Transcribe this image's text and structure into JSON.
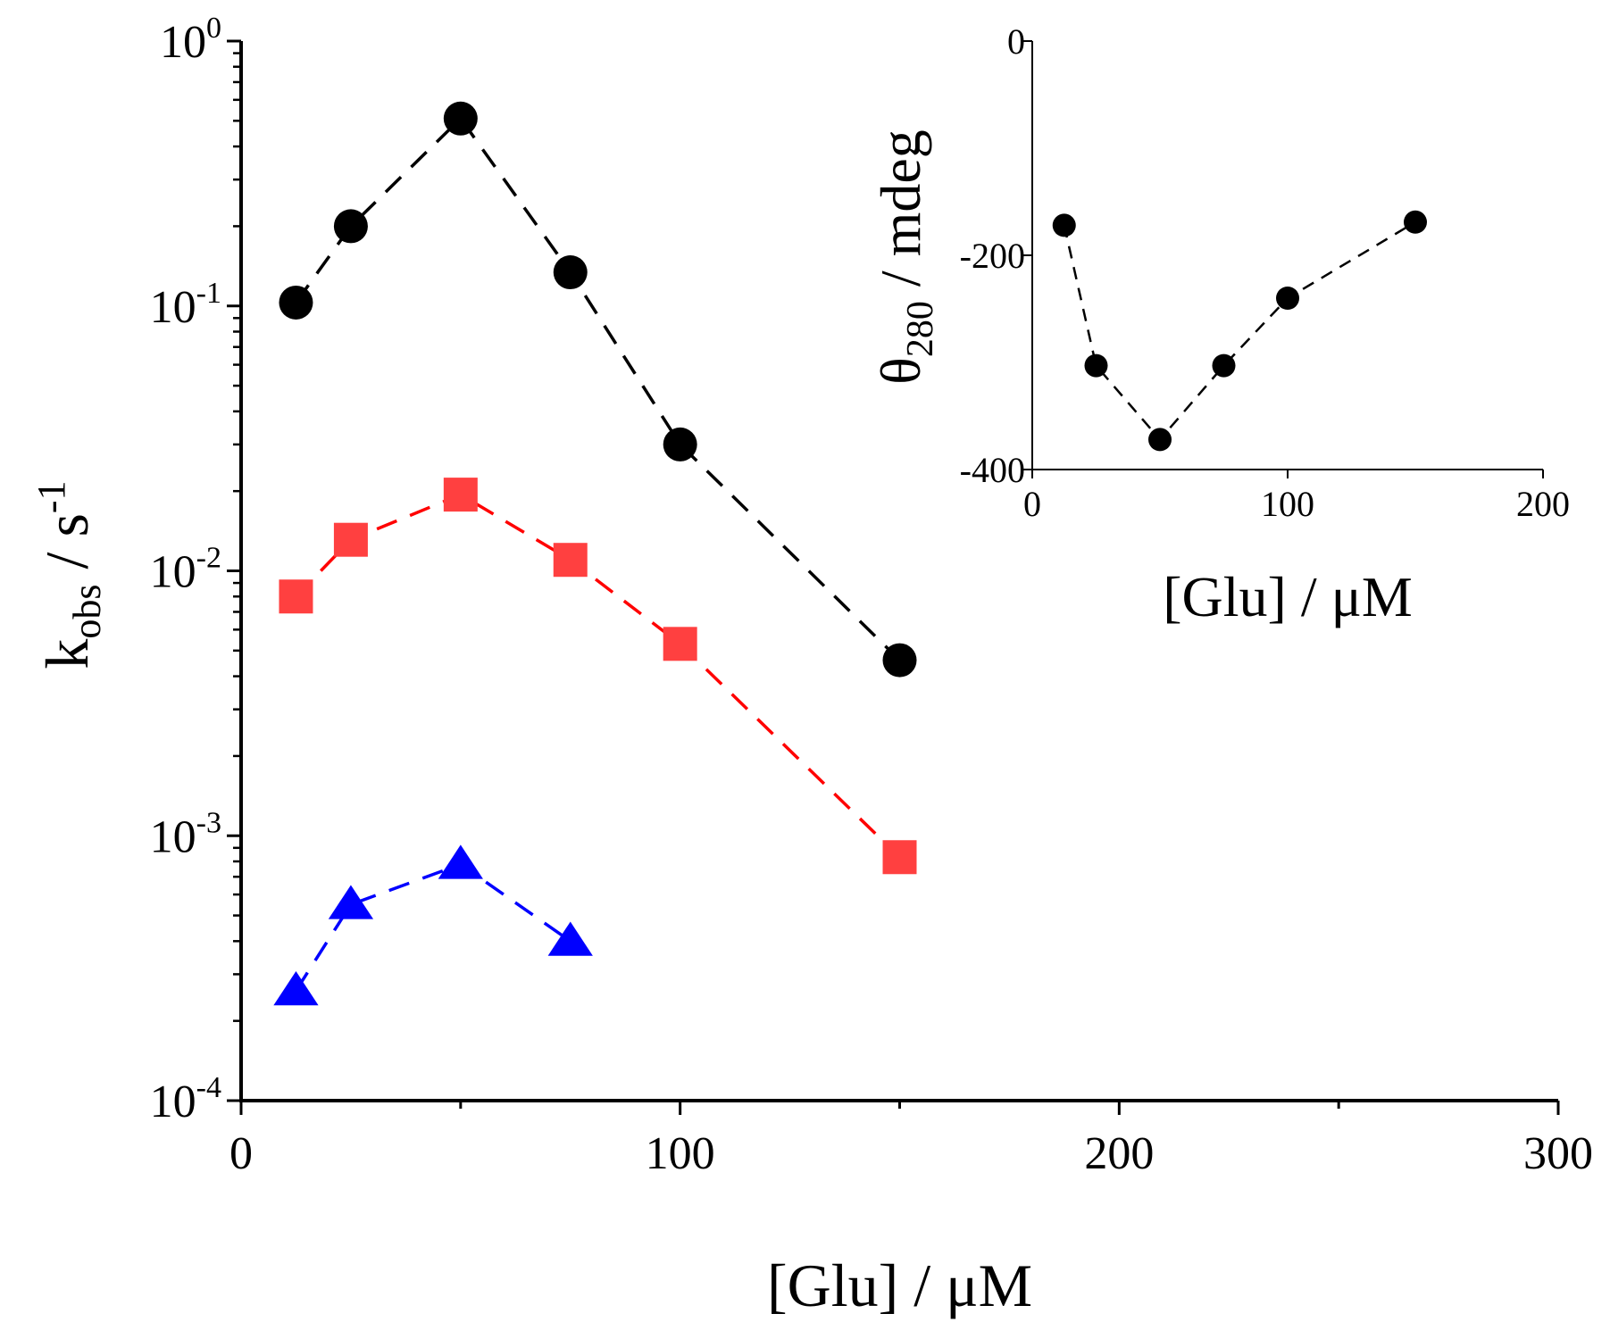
{
  "chart_data": [
    {
      "type": "line",
      "name": "main",
      "xlabel": "[Glu] / μM",
      "ylabel_main": "k",
      "ylabel_sub": "obs",
      "ylabel_mid": " / s",
      "ylabel_sup": "-1",
      "xlim": [
        0,
        300
      ],
      "ylim": [
        0.0001,
        1
      ],
      "yscale": "log",
      "xticks": [
        "0",
        "100",
        "200",
        "300"
      ],
      "yticks": [
        {
          "base": "10",
          "exp": "0"
        },
        {
          "base": "10",
          "exp": "-1"
        },
        {
          "base": "10",
          "exp": "-2"
        },
        {
          "base": "10",
          "exp": "-3"
        },
        {
          "base": "10",
          "exp": "-4"
        }
      ],
      "series": [
        {
          "name": "black-circles",
          "marker": "circle",
          "color": "#000000",
          "x": [
            12.5,
            25,
            50,
            75,
            100,
            150
          ],
          "y": [
            0.103,
            0.2,
            0.51,
            0.134,
            0.03,
            0.0046
          ]
        },
        {
          "name": "red-squares",
          "marker": "square",
          "color": "#ff4040",
          "line_color": "#ff0000",
          "x": [
            12.5,
            25,
            50,
            75,
            100,
            150
          ],
          "y": [
            0.008,
            0.0131,
            0.0194,
            0.011,
            0.0053,
            0.00083
          ]
        },
        {
          "name": "blue-triangles",
          "marker": "triangle",
          "color": "#0000ff",
          "x": [
            12.5,
            25,
            50,
            75
          ],
          "y": [
            0.00026,
            0.00055,
            0.00078,
            0.0004
          ]
        }
      ]
    },
    {
      "type": "line",
      "name": "inset",
      "xlabel": "[Glu] / μM",
      "ylabel_main": "θ",
      "ylabel_sub": "280",
      "ylabel_mid": " / mdeg",
      "xlim": [
        0,
        200
      ],
      "ylim": [
        -400,
        0
      ],
      "xticks": [
        "0",
        "100",
        "200"
      ],
      "yticks": [
        "0",
        "-200",
        "-400"
      ],
      "series": [
        {
          "name": "inset-circles",
          "marker": "circle",
          "color": "#000000",
          "x": [
            12.5,
            25,
            50,
            75,
            100,
            150
          ],
          "y": [
            -172,
            -303,
            -372,
            -303,
            -240,
            -169
          ]
        }
      ]
    }
  ]
}
